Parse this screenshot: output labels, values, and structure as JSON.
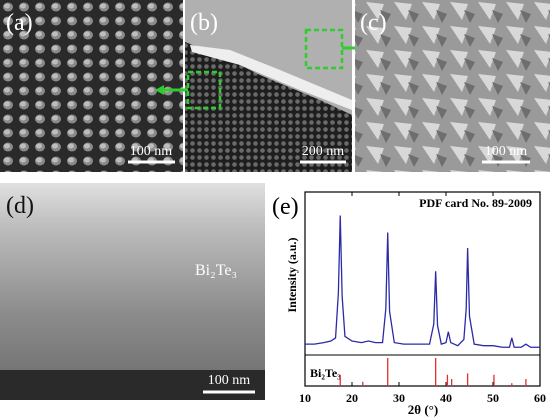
{
  "panels": {
    "a": {
      "label": "(a)",
      "scale_bar": "100 nm"
    },
    "b": {
      "label": "(b)",
      "scale_bar": "200 nm"
    },
    "c": {
      "label": "(c)",
      "scale_bar": "100 nm"
    },
    "d": {
      "label": "(d)",
      "scale_bar": "100 nm",
      "annotation": "Bi₂Te₃"
    }
  },
  "chart_data": {
    "type": "line",
    "label": "(e)",
    "title": "PDF card No. 89-2009",
    "x_label": "2θ (°)",
    "y_label": "Intensity (a.u.)",
    "x": [
      10,
      12,
      14,
      15.5,
      16.5,
      17.1,
      17.5,
      17.9,
      18.5,
      20,
      22,
      23.5,
      25,
      26.5,
      27.2,
      27.6,
      28,
      29,
      31,
      33,
      35,
      36.5,
      37.4,
      37.8,
      38.2,
      39,
      40,
      40.5,
      41,
      42.5,
      43.8,
      44.3,
      44.6,
      45,
      46,
      48,
      50,
      52,
      53.5,
      54,
      54.5,
      56,
      57,
      58,
      60
    ],
    "series": [
      {
        "color": "#2b2ba6",
        "values": [
          7,
          7,
          8,
          9,
          11,
          40,
          90,
          38,
          12,
          9,
          8,
          9,
          8,
          8,
          30,
          79,
          28,
          8,
          7,
          7,
          7,
          7,
          20,
          54,
          19,
          7,
          8,
          15,
          8,
          6,
          10,
          30,
          69,
          25,
          7,
          6,
          6,
          5,
          5,
          11,
          5,
          5,
          7,
          5,
          5
        ]
      }
    ],
    "xlim": [
      10,
      60
    ],
    "xticks": [
      10,
      20,
      30,
      40,
      50,
      60
    ],
    "ylim": [
      0,
      100
    ],
    "reference": {
      "name": "Bi₂Te₃",
      "color": "#e03030",
      "x": [
        17.5,
        22.3,
        27.6,
        37.8,
        40.3,
        41.2,
        44.6,
        50.2,
        54,
        57
      ],
      "values": [
        40,
        15,
        100,
        100,
        40,
        25,
        45,
        40,
        10,
        25
      ],
      "ylim": [
        0,
        100
      ]
    }
  }
}
